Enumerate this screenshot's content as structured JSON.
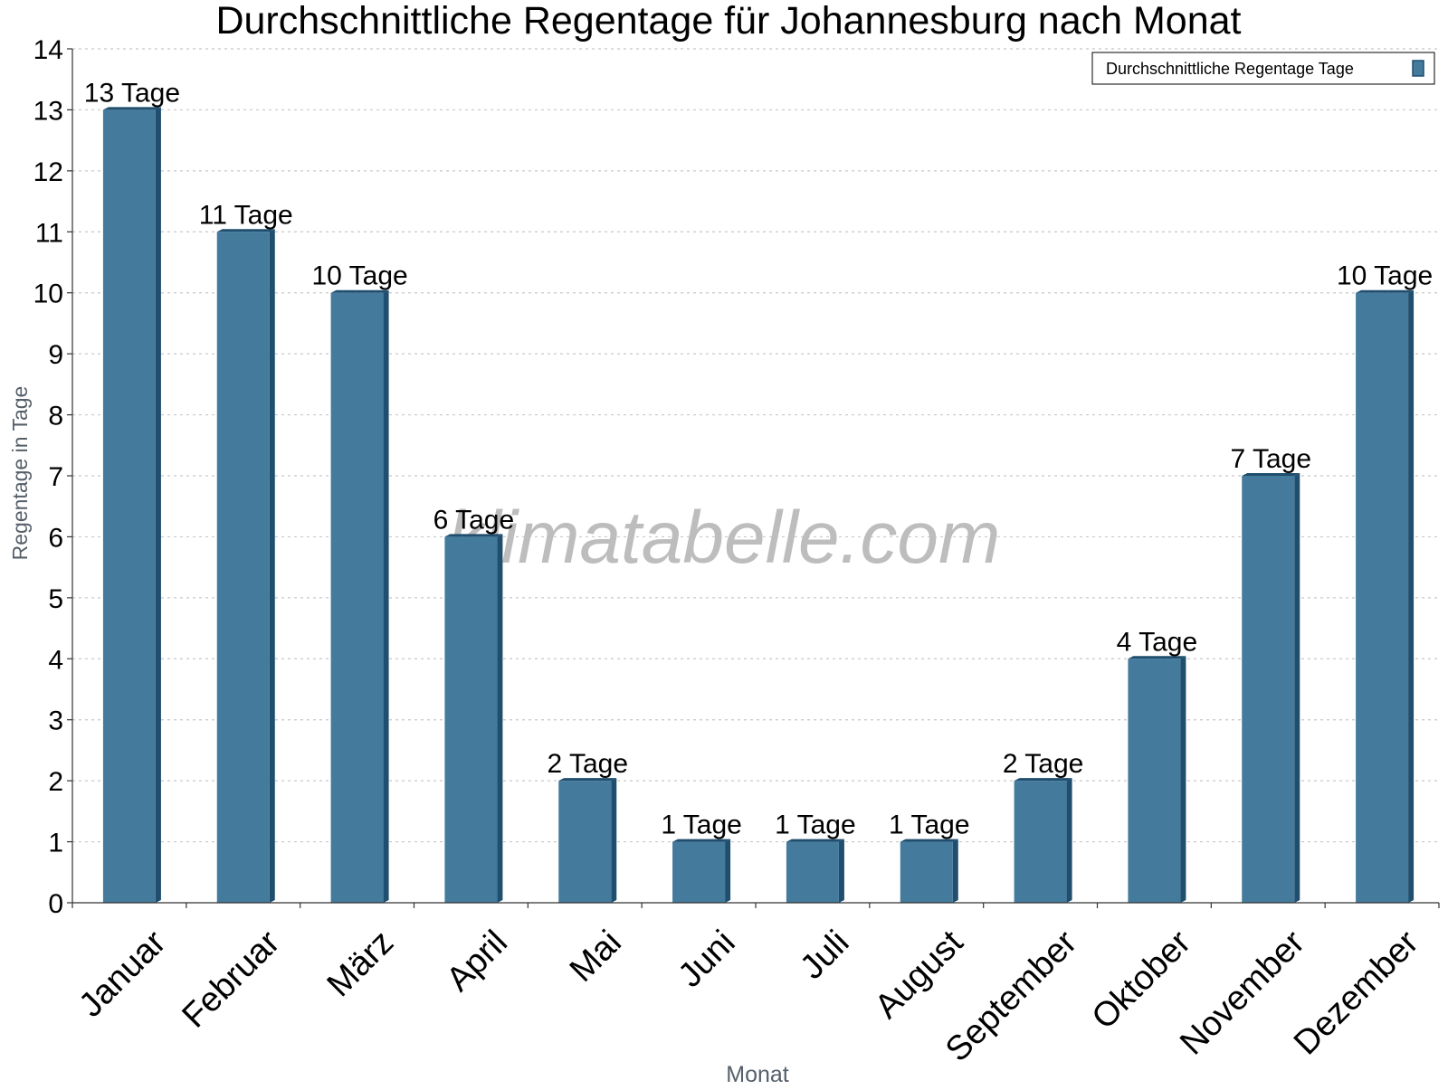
{
  "chart_data": {
    "type": "bar",
    "title": "Durchschnittliche Regentage für Johannesburg nach Monat",
    "xlabel": "Monat",
    "ylabel": "Regentage in Tage",
    "categories": [
      "Januar",
      "Februar",
      "März",
      "April",
      "Mai",
      "Juni",
      "Juli",
      "August",
      "September",
      "Oktober",
      "November",
      "Dezember"
    ],
    "series": [
      {
        "name": "Durchschnittliche Regentage Tage",
        "values": [
          13,
          11,
          10,
          6,
          2,
          1,
          1,
          1,
          2,
          4,
          7,
          10
        ],
        "data_labels": [
          "13 Tage",
          "11 Tage",
          "10 Tage",
          "6 Tage",
          "2 Tage",
          "1 Tage",
          "1 Tage",
          "1 Tage",
          "2 Tage",
          "4 Tage",
          "7 Tage",
          "10 Tage"
        ]
      }
    ],
    "ylim": [
      0,
      14
    ],
    "yticks": [
      0,
      1,
      2,
      3,
      4,
      5,
      6,
      7,
      8,
      9,
      10,
      11,
      12,
      13,
      14
    ],
    "grid": true,
    "legend_position": "top-right",
    "colors": {
      "bar_front": "#447a9c",
      "bar_side": "#1f4e6e",
      "bar_top": "#1f4e6e",
      "axis": "#333333",
      "grid": "#c8c8c8",
      "axis_title": "#555f69",
      "watermark": "#bdbdbd"
    }
  },
  "watermark": "klimatabelle.com"
}
